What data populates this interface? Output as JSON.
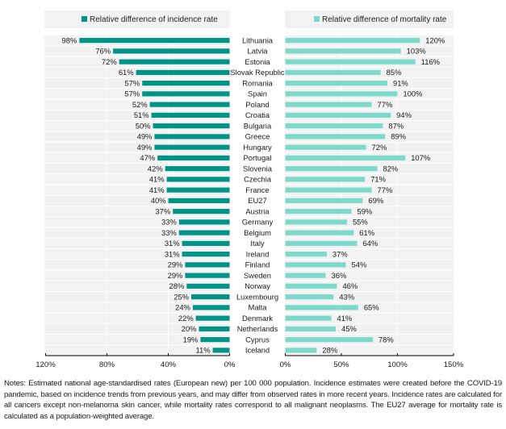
{
  "chart_data": [
    {
      "type": "bar",
      "orientation": "horizontal",
      "direction": "right-to-left",
      "legend": "Relative difference of incidence rate",
      "legend_placement": "top",
      "color": "#009488",
      "categories": [
        "Lithuania",
        "Latvia",
        "Estonia",
        "Slovak Republic",
        "Romania",
        "Spain",
        "Poland",
        "Croatia",
        "Bulgaria",
        "Greece",
        "Hungary",
        "Portugal",
        "Slovenia",
        "Czechia",
        "France",
        "EU27",
        "Austria",
        "Germany",
        "Belgium",
        "Italy",
        "Ireland",
        "Finland",
        "Sweden",
        "Norway",
        "Luxembourg",
        "Malta",
        "Denmark",
        "Netherlands",
        "Cyprus",
        "Iceland"
      ],
      "values": [
        98,
        76,
        72,
        61,
        57,
        57,
        52,
        51,
        50,
        49,
        49,
        47,
        42,
        41,
        41,
        40,
        37,
        33,
        33,
        31,
        31,
        29,
        29,
        28,
        25,
        24,
        22,
        20,
        19,
        11
      ],
      "value_labels": [
        "98%",
        "76%",
        "72%",
        "61%",
        "57%",
        "57%",
        "52%",
        "51%",
        "50%",
        "49%",
        "49%",
        "47%",
        "42%",
        "41%",
        "41%",
        "40%",
        "37%",
        "33%",
        "33%",
        "31%",
        "31%",
        "29%",
        "29%",
        "28%",
        "25%",
        "24%",
        "22%",
        "20%",
        "19%",
        "11%"
      ],
      "xlim": [
        0,
        120
      ],
      "xticks": [
        0,
        40,
        80,
        120
      ],
      "xtick_labels": [
        "0%",
        "40%",
        "80%",
        "120%"
      ],
      "grid": true
    },
    {
      "type": "bar",
      "orientation": "horizontal",
      "direction": "left-to-right",
      "legend": "Relative difference of mortality rate",
      "legend_placement": "top",
      "color": "#7dd9cc",
      "categories": [
        "Lithuania",
        "Latvia",
        "Estonia",
        "Slovak Republic",
        "Romania",
        "Spain",
        "Poland",
        "Croatia",
        "Bulgaria",
        "Greece",
        "Hungary",
        "Portugal",
        "Slovenia",
        "Czechia",
        "France",
        "EU27",
        "Austria",
        "Germany",
        "Belgium",
        "Italy",
        "Ireland",
        "Finland",
        "Sweden",
        "Norway",
        "Luxembourg",
        "Malta",
        "Denmark",
        "Netherlands",
        "Cyprus",
        "Iceland"
      ],
      "values": [
        120,
        103,
        116,
        85,
        91,
        100,
        77,
        94,
        87,
        89,
        72,
        107,
        82,
        71,
        77,
        69,
        59,
        55,
        61,
        64,
        37,
        54,
        36,
        46,
        43,
        65,
        41,
        45,
        78,
        28
      ],
      "value_labels": [
        "120%",
        "103%",
        "116%",
        "85%",
        "91%",
        "100%",
        "77%",
        "94%",
        "87%",
        "89%",
        "72%",
        "107%",
        "82%",
        "71%",
        "77%",
        "69%",
        "59%",
        "55%",
        "61%",
        "64%",
        "37%",
        "54%",
        "36%",
        "46%",
        "43%",
        "65%",
        "41%",
        "45%",
        "78%",
        "28%"
      ],
      "xlim": [
        0,
        150
      ],
      "xticks": [
        0,
        50,
        100,
        150
      ],
      "xtick_labels": [
        "0%",
        "50%",
        "100%",
        "150%"
      ],
      "grid": true
    }
  ],
  "notes": "Notes: Estimated national age-standardised rates (European new) per 100 000 population. Incidence estimates were created before the COVID-19 pandemic, based on incidence trends from previous years, and may differ from observed rates in more recent years. Incidence rates are calculated for all cancers except non-melanoma skin cancer, while mortality rates correspond to all malignant neoplasms. The EU27 average for mortality rate is calculated as a population-weighted average."
}
